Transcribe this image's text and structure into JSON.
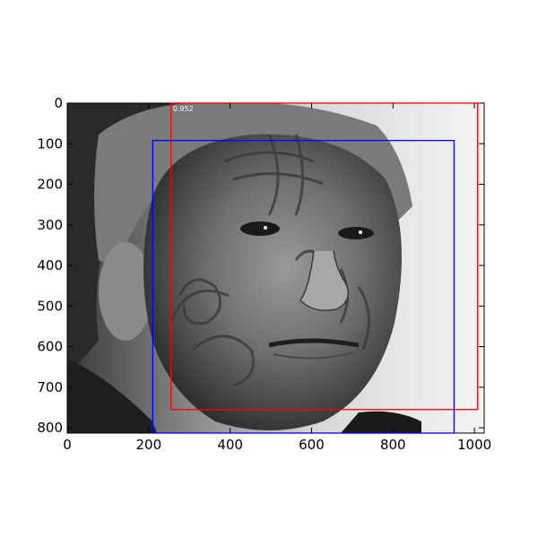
{
  "figure": {
    "background_color": "#ffffff",
    "image_description_icon": "tattooed-face-photo",
    "x_ticks": [
      {
        "value": 0,
        "label": "0"
      },
      {
        "value": 200,
        "label": "200"
      },
      {
        "value": 400,
        "label": "400"
      },
      {
        "value": 600,
        "label": "600"
      },
      {
        "value": 800,
        "label": "800"
      },
      {
        "value": 1000,
        "label": "1000"
      }
    ],
    "y_ticks": [
      {
        "value": 0,
        "label": "0"
      },
      {
        "value": 100,
        "label": "100"
      },
      {
        "value": 200,
        "label": "200"
      },
      {
        "value": 300,
        "label": "300"
      },
      {
        "value": 400,
        "label": "400"
      },
      {
        "value": 500,
        "label": "500"
      },
      {
        "value": 600,
        "label": "600"
      },
      {
        "value": 700,
        "label": "700"
      },
      {
        "value": 800,
        "label": "800"
      }
    ],
    "x_range": [
      0,
      1024
    ],
    "y_range": [
      0,
      813
    ],
    "boxes": [
      {
        "name": "detection-box-red",
        "color": "#ff0000",
        "x1": 255,
        "y1": 0,
        "x2": 1008,
        "y2": 755,
        "score": "0.952"
      },
      {
        "name": "detection-box-blue",
        "color": "#0000ff",
        "x1": 210,
        "y1": 92,
        "x2": 950,
        "y2": 813,
        "score": ""
      }
    ]
  }
}
